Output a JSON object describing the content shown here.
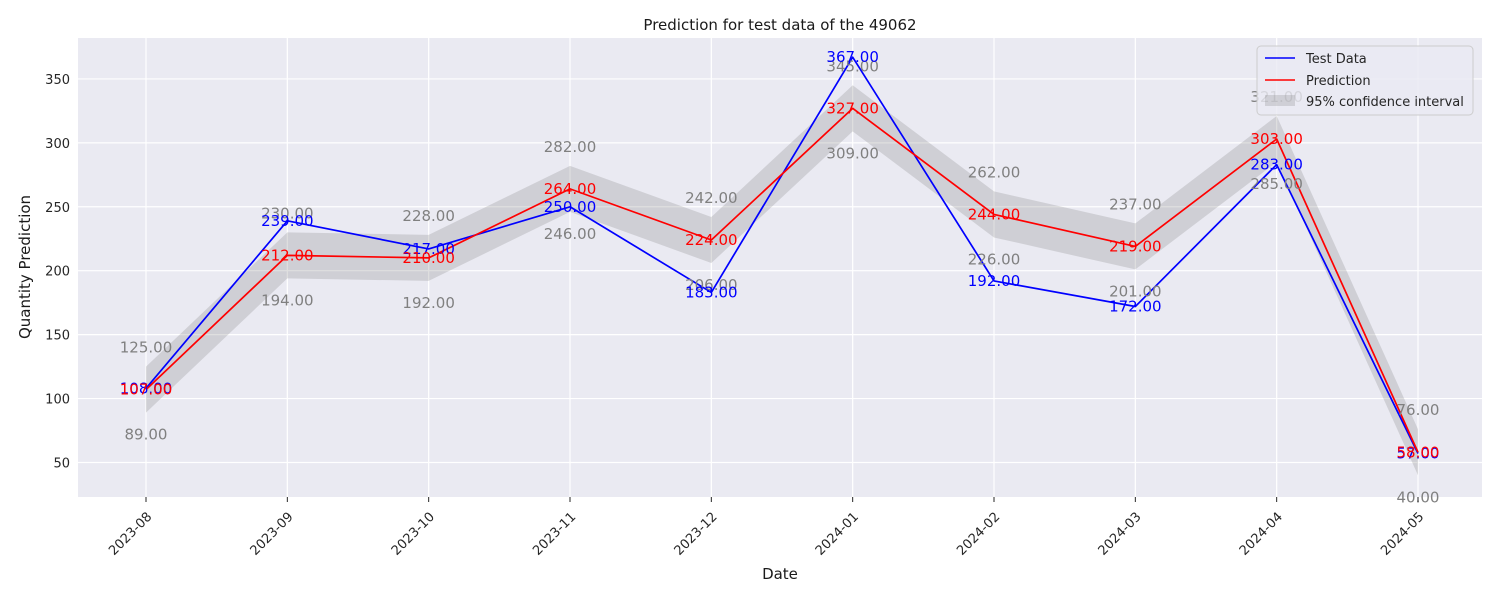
{
  "chart_data": {
    "type": "line",
    "title": "Prediction for test data of the 49062",
    "xlabel": "Date",
    "ylabel": "Quantity Prediction",
    "categories": [
      "2023-08",
      "2023-09",
      "2023-10",
      "2023-11",
      "2023-12",
      "2024-01",
      "2024-02",
      "2024-03",
      "2024-04",
      "2024-05"
    ],
    "yticks": [
      50,
      100,
      150,
      200,
      250,
      300,
      350
    ],
    "ylim": [
      23,
      382
    ],
    "grid": true,
    "legend_position": "top-right",
    "series": [
      {
        "name": "Test Data",
        "color": "#0000ff",
        "values": [
          108,
          239,
          217,
          250,
          183,
          367,
          192,
          172,
          283,
          57
        ],
        "labels": [
          "108.00",
          "239.00",
          "217.00",
          "250.00",
          "183.00",
          "367.00",
          "192.00",
          "172.00",
          "283.00",
          "57.00"
        ]
      },
      {
        "name": "Prediction",
        "color": "#ff0000",
        "values": [
          107,
          212,
          210,
          264,
          224,
          327,
          244,
          219,
          303,
          58
        ],
        "labels": [
          "107.00",
          "212.00",
          "210.00",
          "264.00",
          "224.00",
          "327.00",
          "244.00",
          "219.00",
          "303.00",
          "58.00"
        ]
      }
    ],
    "confidence_interval": {
      "name": "95% confidence interval",
      "color": "#808080",
      "lower": [
        89,
        194,
        192,
        246,
        206,
        309,
        226,
        201,
        285,
        40
      ],
      "upper": [
        125,
        230,
        228,
        282,
        242,
        345,
        262,
        237,
        321,
        76
      ],
      "lower_labels": [
        "89.00",
        "194.00",
        "192.00",
        "246.00",
        "206.00",
        "309.00",
        "226.00",
        "201.00",
        "285.00",
        "40.00"
      ],
      "upper_labels": [
        "125.00",
        "230.00",
        "228.00",
        "282.00",
        "242.00",
        "345.00",
        "262.00",
        "237.00",
        "321.00",
        "76.00"
      ]
    }
  }
}
